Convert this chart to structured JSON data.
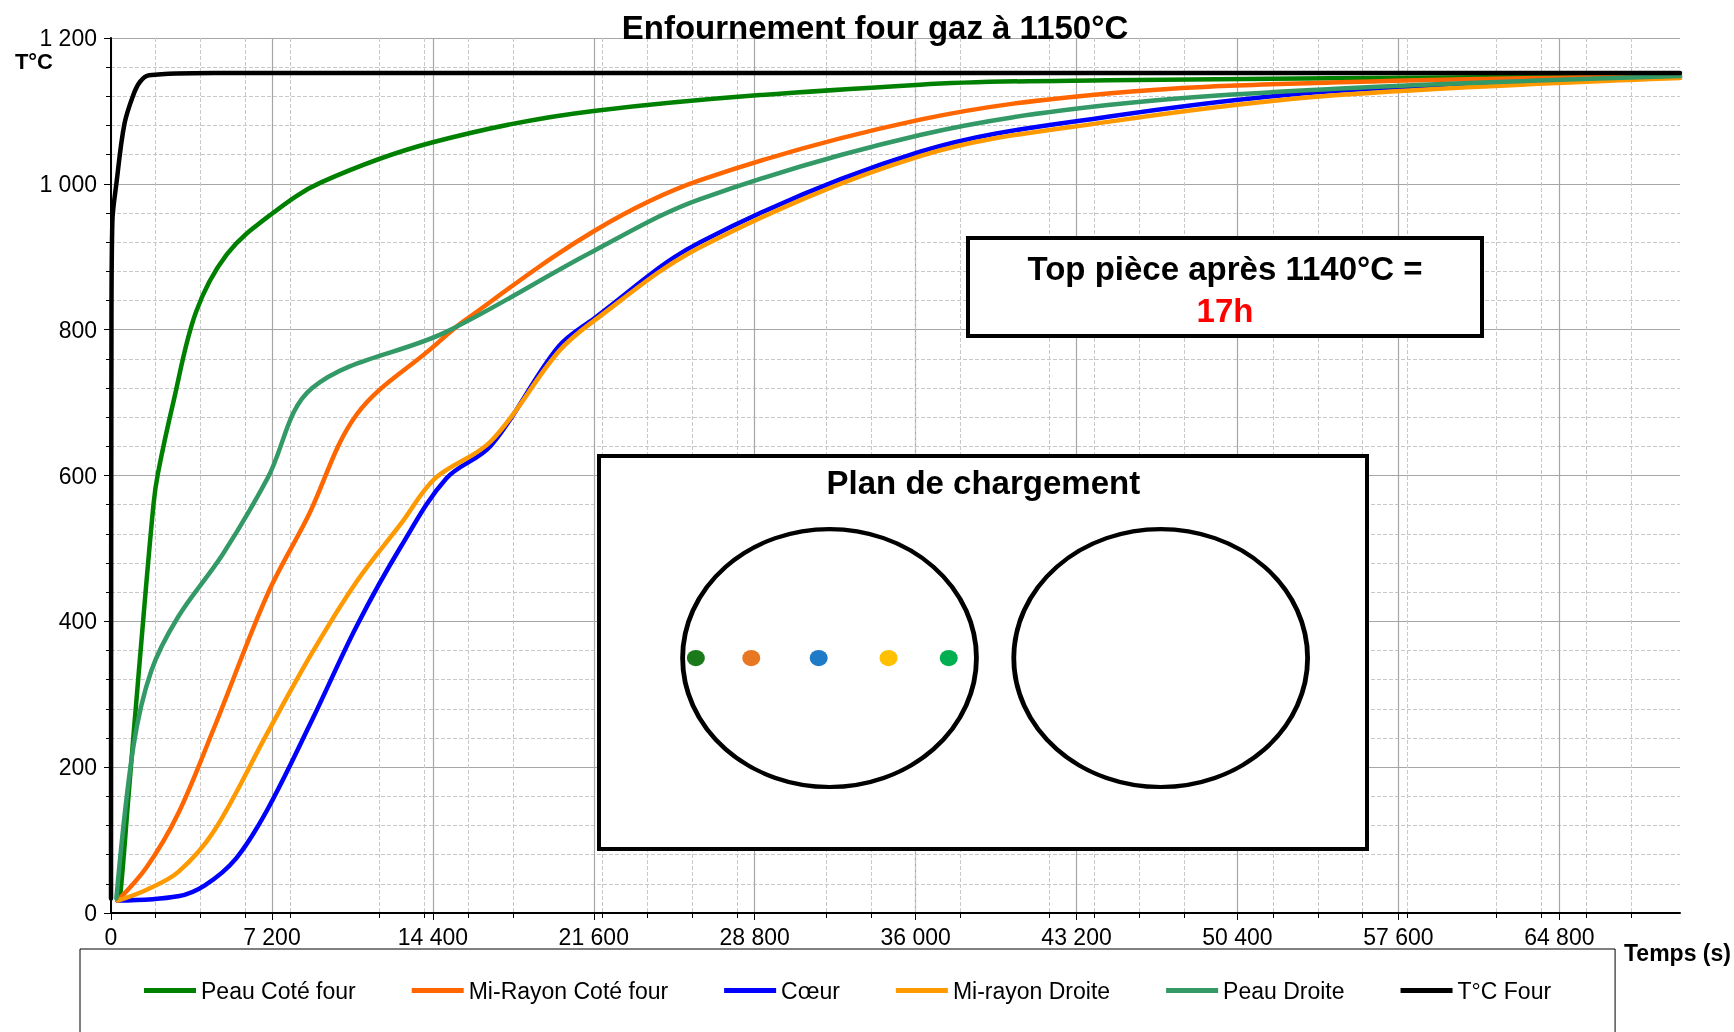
{
  "chart_data": {
    "type": "line",
    "title": "Enfournement four gaz à 1150°C",
    "xlabel": "Temps (s)",
    "ylabel": "T°C",
    "annotations": [
      "Top pièce après 1140°C =",
      "17h",
      "Plan de chargement"
    ],
    "xlim": [
      0,
      70200
    ],
    "ylim": [
      0,
      1200
    ],
    "xticks": [
      0,
      {
        "value": 7200,
        "label": "7 200"
      },
      {
        "value": 14400,
        "label": "14 400"
      },
      {
        "value": 21600,
        "label": "21 600"
      },
      {
        "value": 28800,
        "label": "28 800"
      },
      {
        "value": 36000,
        "label": "36 000"
      },
      {
        "value": 43200,
        "label": "43 200"
      },
      {
        "value": 50400,
        "label": "50 400"
      },
      {
        "value": 57600,
        "label": "57 600"
      },
      {
        "value": 64800,
        "label": "64 800"
      }
    ],
    "yticks": [
      0,
      200,
      400,
      600,
      800,
      {
        "value": 1000,
        "label": "1 000"
      },
      {
        "value": 1200,
        "label": "1 200"
      }
    ],
    "grid": true,
    "legend": "bottom",
    "marker": "none",
    "line_style": "solid",
    "series": [
      {
        "name": "Peau Coté four",
        "color": "#008000",
        "x": [
          300,
          400,
          800,
          1300,
          1900,
          2100,
          2800,
          3800,
          5200,
          7200,
          9400,
          14400,
          21600,
          36200,
          44600,
          70200
        ],
        "values": [
          17,
          20,
          167,
          351,
          560,
          603,
          702,
          824,
          904,
          959,
          1002,
          1057,
          1100,
          1136,
          1142,
          1148
        ]
      },
      {
        "name": "Mi-Rayon Coté four",
        "color": "#ff6600",
        "x": [
          300,
          1600,
          3000,
          4600,
          7000,
          8800,
          11000,
          14400,
          15800,
          21600,
          26360,
          36200,
          44600,
          54600,
          70200
        ],
        "values": [
          17,
          63,
          136,
          253,
          437,
          543,
          684,
          776,
          812,
          935,
          1005,
          1088,
          1124,
          1139,
          1148
        ]
      },
      {
        "name": "Cœur",
        "color": "#0000ff",
        "x": [
          300,
          3000,
          4200,
          5600,
          7000,
          9000,
          11000,
          13000,
          15000,
          17000,
          20000,
          21600,
          26360,
          36200,
          44600,
          54600,
          70200
        ],
        "values": [
          17,
          23,
          38,
          75,
          142,
          265,
          394,
          504,
          596,
          641,
          776,
          815,
          920,
          1044,
          1092,
          1127,
          1146
        ]
      },
      {
        "name": "Mi-rayon Droite",
        "color": "#ff9900",
        "x": [
          300,
          1600,
          3000,
          4600,
          7000,
          9000,
          11000,
          13000,
          14500,
          17000,
          20000,
          21600,
          26360,
          36200,
          44600,
          54600,
          70200
        ],
        "values": [
          17,
          32,
          56,
          112,
          247,
          357,
          455,
          535,
          596,
          647,
          769,
          812,
          913,
          1038,
          1085,
          1121,
          1145
        ]
      },
      {
        "name": "Peau Droite",
        "color": "#339966",
        "x": [
          240,
          1000,
          1800,
          3000,
          5000,
          7000,
          9000,
          15000,
          21600,
          26360,
          36200,
          44600,
          54600,
          70200
        ],
        "values": [
          20,
          228,
          332,
          406,
          492,
          596,
          720,
          797,
          908,
          979,
          1067,
          1108,
          1130,
          1148
        ]
      },
      {
        "name": "T°C Four",
        "color": "#000000",
        "x": [
          0,
          20,
          60,
          240,
          600,
          1000,
          1300,
          1700,
          4600,
          70200
        ],
        "values": [
          20,
          800,
          947,
          1000,
          1082,
          1122,
          1140,
          1149,
          1152,
          1152
        ]
      }
    ]
  }
}
